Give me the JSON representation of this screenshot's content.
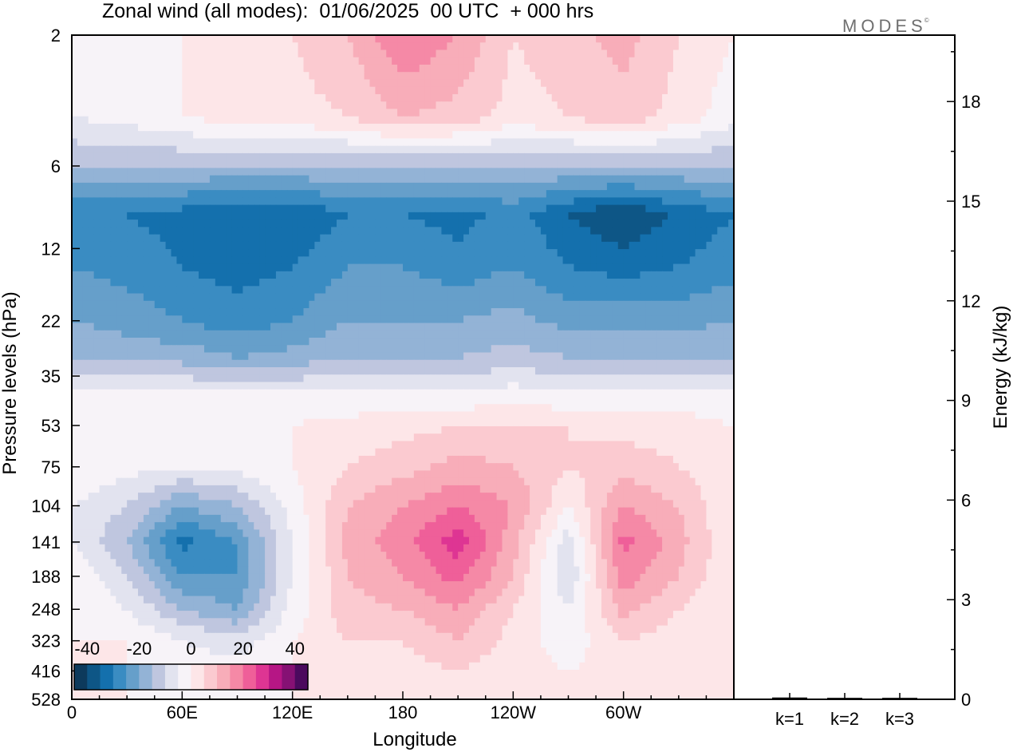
{
  "title": "Zonal wind (all modes):  01/06/2025  00 UTC  + 000 hrs",
  "brand": {
    "text": "MODES",
    "mark": "©"
  },
  "chart_data": [
    {
      "type": "heatmap",
      "title": "Zonal wind (all modes):  01/06/2025  00 UTC  + 000 hrs",
      "xlabel": "Longitude",
      "ylabel": "Pressure levels (hPa)",
      "x_ticks": [
        "0",
        "60E",
        "120E",
        "180",
        "120W",
        "60W"
      ],
      "x_tick_values": [
        0,
        60,
        120,
        180,
        240,
        300
      ],
      "xlim": [
        0,
        360
      ],
      "y_ticks": [
        "2",
        "6",
        "12",
        "22",
        "35",
        "53",
        "75",
        "104",
        "141",
        "188",
        "248",
        "323",
        "416",
        "528"
      ],
      "y_scale": "log",
      "colorbar": {
        "tick_labels": [
          "-40",
          "-20",
          "0",
          "20",
          "40"
        ],
        "tick_values": [
          -40,
          -20,
          0,
          20,
          40
        ],
        "step": 5,
        "colors": [
          "#0d3a5c",
          "#0e5686",
          "#1470ad",
          "#3a8cc2",
          "#669fca",
          "#93b3d6",
          "#bfc6df",
          "#e2e3ef",
          "#f7f3f8",
          "#fde6e8",
          "#fbcad0",
          "#f8adb9",
          "#f589a6",
          "#ef5f99",
          "#de3593",
          "#b61685",
          "#861174",
          "#4b0a5e"
        ],
        "placement": "bottom-left inside plot"
      },
      "bands": [
        {
          "p": 2,
          "values": [
            0,
            0,
            0,
            2,
            5,
            10,
            20,
            15,
            5,
            8,
            12,
            5,
            0
          ]
        },
        {
          "p": 4,
          "values": [
            -5,
            -3,
            0,
            2,
            3,
            5,
            10,
            8,
            3,
            5,
            8,
            3,
            -3
          ]
        },
        {
          "p": 6,
          "values": [
            -15,
            -15,
            -15,
            -15,
            -15,
            -15,
            -15,
            -15,
            -15,
            -15,
            -15,
            -15,
            -15
          ]
        },
        {
          "p": 9,
          "values": [
            -30,
            -30,
            -32,
            -35,
            -35,
            -30,
            -30,
            -32,
            -28,
            -35,
            -40,
            -34,
            -30
          ]
        },
        {
          "p": 14,
          "values": [
            -25,
            -27,
            -30,
            -32,
            -30,
            -25,
            -25,
            -28,
            -25,
            -30,
            -32,
            -30,
            -27
          ]
        },
        {
          "p": 22,
          "values": [
            -20,
            -22,
            -25,
            -28,
            -25,
            -20,
            -20,
            -20,
            -18,
            -22,
            -22,
            -22,
            -20
          ]
        },
        {
          "p": 30,
          "values": [
            -15,
            -17,
            -17,
            -20,
            -18,
            -15,
            -15,
            -15,
            -13,
            -15,
            -15,
            -15,
            -15
          ]
        },
        {
          "p": 40,
          "values": [
            -5,
            -5,
            -5,
            -5,
            -5,
            -5,
            -5,
            -5,
            -3,
            -5,
            -5,
            -5,
            -5
          ]
        },
        {
          "p": 53,
          "values": [
            0,
            0,
            0,
            0,
            0,
            2,
            3,
            5,
            5,
            5,
            3,
            3,
            0
          ]
        },
        {
          "p": 75,
          "values": [
            0,
            -3,
            -5,
            -3,
            0,
            5,
            8,
            12,
            10,
            5,
            8,
            5,
            0
          ]
        },
        {
          "p": 104,
          "values": [
            -5,
            -10,
            -20,
            -15,
            -3,
            10,
            15,
            20,
            15,
            0,
            15,
            10,
            0
          ]
        },
        {
          "p": 141,
          "values": [
            -5,
            -15,
            -32,
            -25,
            -5,
            12,
            18,
            28,
            12,
            -8,
            22,
            12,
            0
          ]
        },
        {
          "p": 188,
          "values": [
            0,
            -10,
            -25,
            -25,
            -5,
            10,
            15,
            22,
            10,
            -10,
            18,
            10,
            0
          ]
        },
        {
          "p": 248,
          "values": [
            0,
            -5,
            -15,
            -20,
            -3,
            8,
            10,
            15,
            5,
            -5,
            12,
            5,
            0
          ]
        },
        {
          "p": 323,
          "values": [
            0,
            0,
            -5,
            -8,
            0,
            5,
            5,
            10,
            3,
            -3,
            5,
            2,
            0
          ]
        },
        {
          "p": 416,
          "values": [
            0,
            0,
            -2,
            -3,
            0,
            3,
            3,
            5,
            2,
            0,
            2,
            0,
            0
          ]
        },
        {
          "p": 528,
          "values": [
            0,
            0,
            0,
            0,
            0,
            0,
            0,
            0,
            0,
            0,
            0,
            0,
            0
          ]
        }
      ]
    },
    {
      "type": "bar",
      "ylabel": "Energy (kJ/kg)",
      "categories": [
        "k=1",
        "k=2",
        "k=3"
      ],
      "values": [
        0.03,
        0.02,
        0.02
      ],
      "ylim": [
        0,
        20
      ],
      "y_ticks": [
        "0",
        "3",
        "6",
        "9",
        "12",
        "15",
        "18"
      ],
      "y_tick_values": [
        0,
        3,
        6,
        9,
        12,
        15,
        18
      ]
    }
  ]
}
